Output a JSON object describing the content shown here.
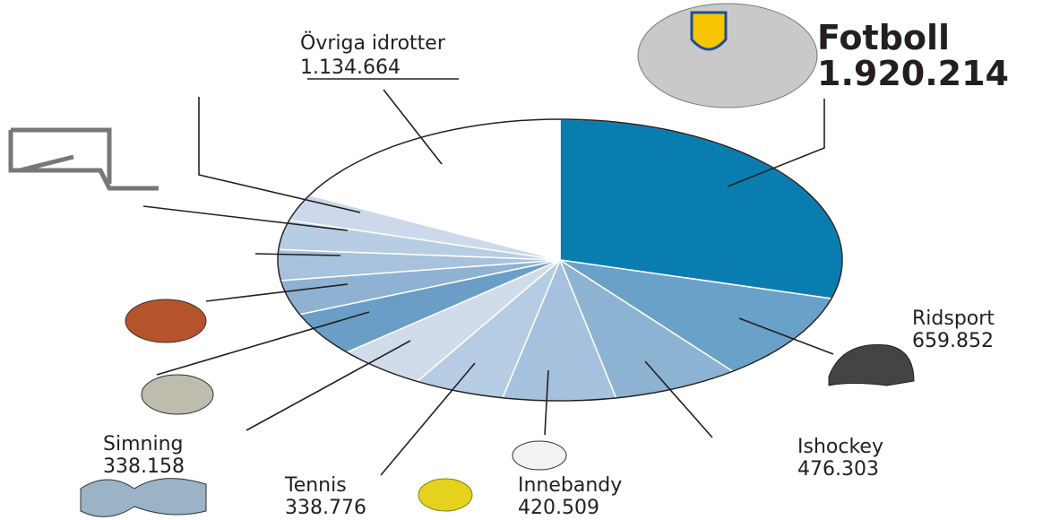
{
  "chart_data": {
    "type": "pie",
    "categories": [
      "Fotboll",
      "Ridsport",
      "Ishockey",
      "Innebandy",
      "Tennis",
      "Simning",
      null,
      null,
      null,
      null,
      null,
      "Övriga idrotter"
    ],
    "values": [
      1920214,
      659852,
      476303,
      420509,
      338776,
      338158,
      330000,
      260000,
      230000,
      220000,
      200000,
      1134664
    ],
    "value_labels": [
      "1.920.214",
      "659.852",
      "476.303",
      "420.509",
      "338.776",
      "338.158",
      null,
      null,
      null,
      null,
      null,
      "1.134.664"
    ],
    "colors": [
      "#0a7db0",
      "#6aa1c8",
      "#8db3d3",
      "#a6c1de",
      "#b5cce3",
      "#d0dcea",
      "#6a9ec7",
      "#8fb2d3",
      "#a8c1dc",
      "#b7cde3",
      "#cbd9ea",
      "#ffffff"
    ]
  }
}
